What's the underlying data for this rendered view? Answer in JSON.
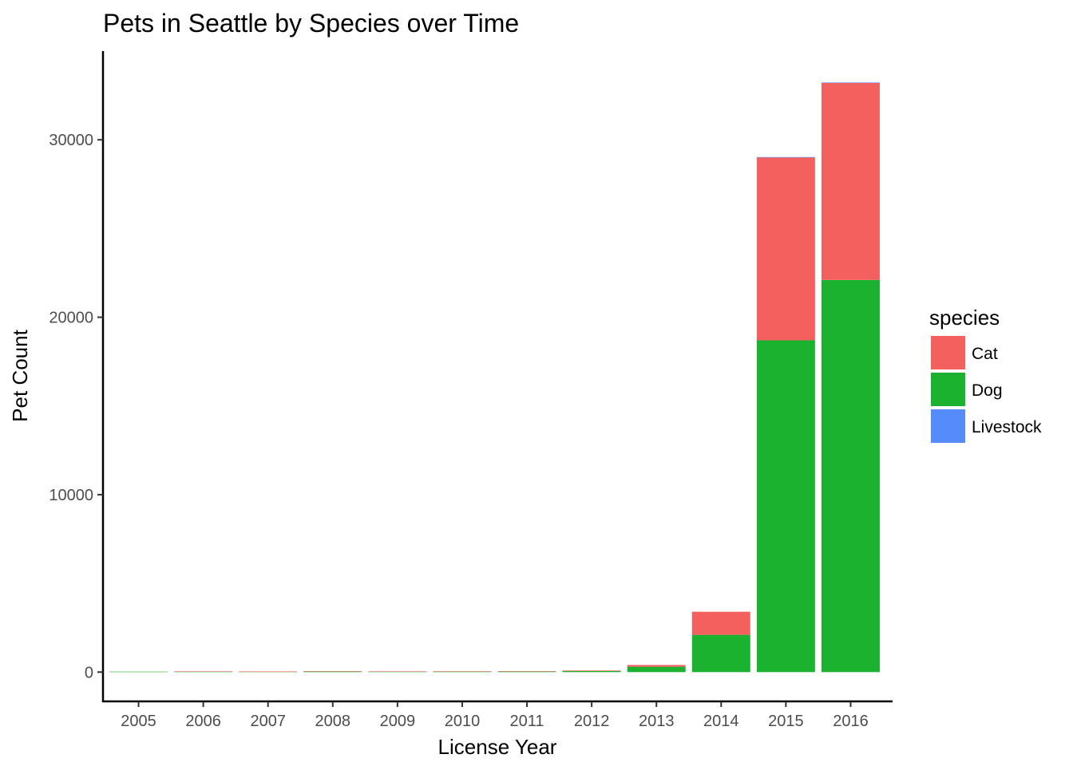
{
  "chart_data": {
    "type": "bar",
    "stacked": true,
    "title": "Pets in Seattle by Species over Time",
    "xlabel": "License Year",
    "ylabel": "Pet Count",
    "categories": [
      "2005",
      "2006",
      "2007",
      "2008",
      "2009",
      "2010",
      "2011",
      "2012",
      "2013",
      "2014",
      "2015",
      "2016"
    ],
    "yticks": [
      0,
      10000,
      20000,
      30000
    ],
    "ytick_labels": [
      "0",
      "10000",
      "20000",
      "30000"
    ],
    "ylim": [
      -1650,
      35000
    ],
    "grid": false,
    "legend": {
      "title": "species",
      "placement": "right"
    },
    "series": [
      {
        "name": "Dog",
        "color": "#1ab22f",
        "values": [
          1,
          15,
          10,
          30,
          15,
          25,
          30,
          60,
          300,
          2100,
          18700,
          22100
        ]
      },
      {
        "name": "Cat",
        "color": "#f4605d",
        "values": [
          0,
          5,
          4,
          10,
          5,
          10,
          15,
          30,
          100,
          1300,
          10300,
          11100
        ]
      },
      {
        "name": "Livestock",
        "color": "#568bfc",
        "values": [
          0,
          0,
          0,
          0,
          0,
          0,
          0,
          0,
          0,
          0,
          2,
          3
        ]
      }
    ],
    "legend_order": [
      "Cat",
      "Dog",
      "Livestock"
    ]
  }
}
